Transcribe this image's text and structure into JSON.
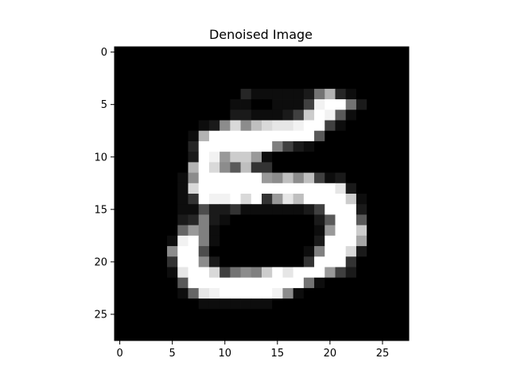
{
  "chart_data": {
    "type": "heatmap",
    "title": "Denoised Image",
    "xlabel": "",
    "ylabel": "",
    "colormap": "gray",
    "value_range": [
      0,
      1
    ],
    "grid": false,
    "rows": 28,
    "cols": 28,
    "x_ticks": [
      0,
      5,
      10,
      15,
      20,
      25
    ],
    "y_ticks": [
      0,
      5,
      10,
      15,
      20,
      25
    ],
    "x_tick_labels": [
      "0",
      "5",
      "10",
      "15",
      "20",
      "25"
    ],
    "y_tick_labels": [
      "0",
      "5",
      "10",
      "15",
      "20",
      "25"
    ],
    "values": [
      [
        0,
        0,
        0,
        0,
        0,
        0,
        0,
        0,
        0,
        0,
        0,
        0,
        0,
        0,
        0,
        0,
        0,
        0,
        0,
        0,
        0,
        0,
        0,
        0,
        0,
        0,
        0,
        0
      ],
      [
        0,
        0,
        0,
        0,
        0,
        0,
        0,
        0,
        0,
        0,
        0,
        0,
        0,
        0,
        0,
        0,
        0,
        0,
        0,
        0,
        0,
        0,
        0,
        0,
        0,
        0,
        0,
        0
      ],
      [
        0,
        0,
        0,
        0,
        0,
        0,
        0,
        0,
        0,
        0,
        0,
        0,
        0,
        0,
        0,
        0,
        0,
        0,
        0,
        0,
        0,
        0,
        0,
        0,
        0,
        0,
        0,
        0
      ],
      [
        0,
        0,
        0,
        0,
        0,
        0,
        0,
        0,
        0,
        0,
        0,
        0,
        0,
        0,
        0,
        0,
        0,
        0,
        0,
        0,
        0,
        0,
        0,
        0,
        0,
        0,
        0,
        0
      ],
      [
        0,
        0,
        0,
        0,
        0,
        0,
        0,
        0,
        0,
        0,
        0,
        0,
        0.15,
        0.05,
        0.05,
        0.05,
        0.05,
        0.05,
        0.1,
        0.45,
        0.7,
        0.15,
        0.05,
        0,
        0,
        0,
        0,
        0
      ],
      [
        0,
        0,
        0,
        0,
        0,
        0,
        0,
        0,
        0,
        0,
        0,
        0.05,
        0.05,
        0,
        0,
        0.05,
        0.05,
        0.05,
        0.25,
        0.95,
        1,
        1,
        0.45,
        0.1,
        0,
        0,
        0,
        0
      ],
      [
        0,
        0,
        0,
        0,
        0,
        0,
        0,
        0,
        0,
        0,
        0,
        0.1,
        0.1,
        0.05,
        0.05,
        0.05,
        0.1,
        0.25,
        0.8,
        1,
        0.95,
        0.35,
        0.05,
        0,
        0,
        0,
        0,
        0
      ],
      [
        0,
        0,
        0,
        0,
        0,
        0,
        0,
        0,
        0.05,
        0.1,
        0.55,
        0.85,
        0.55,
        0.75,
        0.85,
        0.9,
        0.9,
        0.95,
        1,
        1,
        0.25,
        0.05,
        0,
        0,
        0,
        0,
        0,
        0
      ],
      [
        0,
        0,
        0,
        0,
        0,
        0,
        0,
        0.05,
        0.7,
        1,
        1,
        1,
        1,
        1,
        1,
        1,
        1,
        1,
        1,
        0.35,
        0,
        0,
        0,
        0,
        0,
        0,
        0,
        0
      ],
      [
        0,
        0,
        0,
        0,
        0,
        0,
        0,
        0.15,
        1,
        1,
        1,
        1,
        1,
        1,
        1,
        0.5,
        0.25,
        0.1,
        0.05,
        0,
        0,
        0,
        0,
        0,
        0,
        0,
        0,
        0
      ],
      [
        0,
        0,
        0,
        0,
        0,
        0,
        0,
        0.1,
        1,
        0.95,
        0.6,
        0.8,
        0.8,
        0.6,
        0.05,
        0,
        0,
        0,
        0,
        0,
        0,
        0,
        0,
        0,
        0,
        0,
        0,
        0
      ],
      [
        0,
        0,
        0,
        0,
        0,
        0,
        0,
        0.7,
        1,
        0.85,
        0.55,
        0.35,
        0.75,
        0.2,
        0.2,
        0,
        0,
        0,
        0,
        0,
        0,
        0,
        0,
        0,
        0,
        0,
        0,
        0
      ],
      [
        0,
        0,
        0,
        0,
        0,
        0,
        0.05,
        0.55,
        1,
        1,
        1,
        1,
        1,
        1,
        0.6,
        0.55,
        0.75,
        0.55,
        0.75,
        0.25,
        0.05,
        0.1,
        0,
        0,
        0,
        0,
        0,
        0
      ],
      [
        0,
        0,
        0,
        0,
        0,
        0,
        0.05,
        0.85,
        1,
        1,
        1,
        1,
        1,
        1,
        1,
        1,
        1,
        1,
        1,
        1,
        1,
        0.9,
        0.1,
        0,
        0,
        0,
        0,
        0
      ],
      [
        0,
        0,
        0,
        0,
        0,
        0,
        0.05,
        0.2,
        1,
        0.95,
        0.95,
        1,
        0.85,
        1,
        0.2,
        0.6,
        0.9,
        0.75,
        1,
        1,
        1,
        1,
        0.8,
        0.05,
        0,
        0,
        0,
        0
      ],
      [
        0,
        0,
        0,
        0,
        0,
        0,
        0.05,
        0.05,
        0.3,
        0.1,
        0.1,
        0.2,
        0.05,
        0.05,
        0.05,
        0.05,
        0.05,
        0.05,
        0.1,
        0.25,
        1,
        1,
        1,
        0.1,
        0,
        0,
        0,
        0
      ],
      [
        0,
        0,
        0,
        0,
        0,
        0,
        0.1,
        0.15,
        0.5,
        0.1,
        0.05,
        0,
        0,
        0,
        0,
        0,
        0,
        0,
        0,
        0.1,
        0.35,
        1,
        1,
        0.35,
        0,
        0,
        0,
        0
      ],
      [
        0,
        0,
        0,
        0,
        0,
        0,
        0.4,
        0.6,
        0.5,
        0.05,
        0,
        0,
        0,
        0,
        0,
        0,
        0,
        0,
        0,
        0.05,
        0.6,
        1,
        1,
        0.8,
        0,
        0,
        0,
        0
      ],
      [
        0,
        0,
        0,
        0,
        0,
        0.05,
        0.95,
        1,
        0.5,
        0.05,
        0,
        0,
        0,
        0,
        0,
        0,
        0,
        0,
        0,
        0.1,
        1,
        1,
        1,
        0.65,
        0,
        0,
        0,
        0
      ],
      [
        0,
        0,
        0,
        0,
        0,
        0.55,
        1,
        1,
        0.3,
        0,
        0,
        0,
        0,
        0,
        0,
        0,
        0,
        0,
        0.05,
        0.5,
        1,
        1,
        0.85,
        0.1,
        0,
        0,
        0,
        0
      ],
      [
        0,
        0,
        0,
        0,
        0,
        0.2,
        1,
        1,
        0.55,
        0.1,
        0,
        0,
        0,
        0,
        0,
        0,
        0,
        0,
        0.2,
        1,
        1,
        1,
        0.2,
        0,
        0,
        0,
        0,
        0
      ],
      [
        0,
        0,
        0,
        0,
        0,
        0.05,
        0.9,
        1,
        1,
        0.85,
        0.25,
        0.45,
        0.55,
        0.5,
        0.8,
        1,
        0.9,
        1,
        1,
        1,
        0.6,
        0.25,
        0.1,
        0,
        0,
        0,
        0,
        0
      ],
      [
        0,
        0,
        0,
        0,
        0,
        0,
        0.35,
        1,
        1,
        1,
        1,
        1,
        1,
        1,
        1,
        1,
        1,
        1,
        0.45,
        0.05,
        0,
        0,
        0,
        0,
        0,
        0,
        0,
        0
      ],
      [
        0,
        0,
        0,
        0,
        0,
        0,
        0.05,
        0.4,
        0.9,
        0.95,
        1,
        1,
        1,
        1,
        1,
        0.95,
        0.55,
        0.05,
        0,
        0,
        0,
        0,
        0,
        0,
        0,
        0,
        0,
        0
      ],
      [
        0,
        0,
        0,
        0,
        0,
        0,
        0,
        0,
        0.05,
        0.05,
        0.05,
        0.05,
        0.05,
        0.05,
        0.05,
        0,
        0,
        0,
        0,
        0,
        0,
        0,
        0,
        0,
        0,
        0,
        0,
        0
      ],
      [
        0,
        0,
        0,
        0,
        0,
        0,
        0,
        0,
        0,
        0,
        0,
        0,
        0,
        0,
        0,
        0,
        0,
        0,
        0,
        0,
        0,
        0,
        0,
        0,
        0,
        0,
        0,
        0
      ],
      [
        0,
        0,
        0,
        0,
        0,
        0,
        0,
        0,
        0,
        0,
        0,
        0,
        0,
        0,
        0,
        0,
        0,
        0,
        0,
        0,
        0,
        0,
        0,
        0,
        0,
        0,
        0,
        0
      ],
      [
        0,
        0,
        0,
        0,
        0,
        0,
        0,
        0,
        0,
        0,
        0,
        0,
        0,
        0,
        0,
        0,
        0,
        0,
        0,
        0,
        0,
        0,
        0,
        0,
        0,
        0,
        0,
        0
      ]
    ]
  }
}
